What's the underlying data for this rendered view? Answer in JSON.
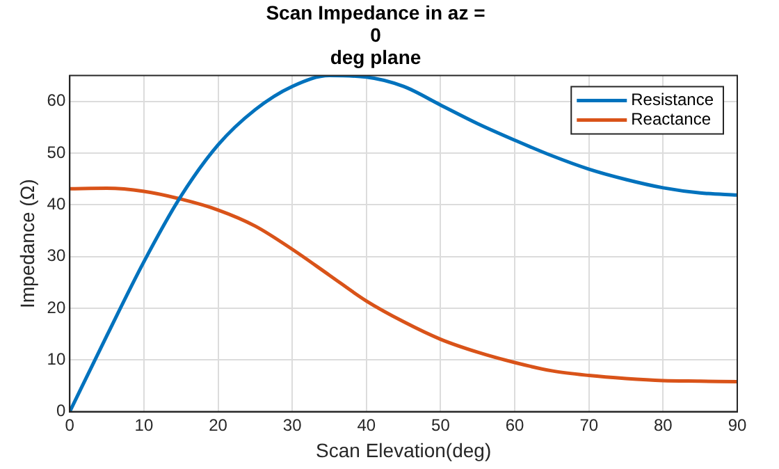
{
  "chart_data": {
    "type": "line",
    "title": "Scan Impedance in az =\n0\ndeg plane",
    "xlabel": "Scan Elevation(deg)",
    "ylabel": "Impedance (Ω)",
    "x": [
      0,
      5,
      10,
      15,
      20,
      25,
      30,
      35,
      40,
      45,
      50,
      55,
      60,
      65,
      70,
      75,
      80,
      85,
      90
    ],
    "series": [
      {
        "name": "Resistance",
        "color": "#0072bd",
        "values": [
          0,
          14.7,
          29,
          41.7,
          51.6,
          58.4,
          62.9,
          65,
          64.7,
          62.9,
          59.3,
          55.7,
          52.5,
          49.5,
          46.9,
          44.9,
          43.3,
          42.3,
          41.9
        ]
      },
      {
        "name": "Reactance",
        "color": "#d95319",
        "values": [
          43.1,
          43.2,
          42.6,
          41.1,
          39,
          35.9,
          31.4,
          26.4,
          21.4,
          17.4,
          14,
          11.5,
          9.5,
          7.9,
          7,
          6.4,
          6,
          5.9,
          5.8
        ]
      }
    ],
    "xlim": [
      0,
      90
    ],
    "xticks": [
      0,
      10,
      20,
      30,
      40,
      50,
      60,
      70,
      80,
      90
    ],
    "ylim": [
      0,
      65
    ],
    "yticks": [
      0,
      10,
      20,
      30,
      40,
      50,
      60
    ],
    "grid": true,
    "legend": "top right",
    "marker": "none",
    "line_style": "solid"
  }
}
